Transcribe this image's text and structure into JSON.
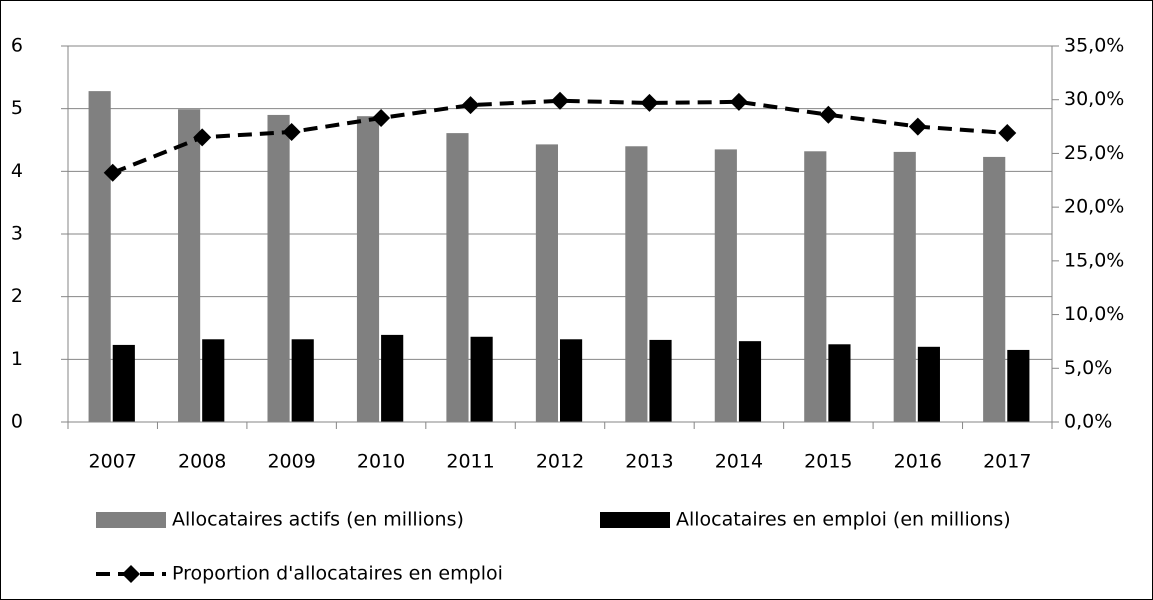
{
  "chart_data": {
    "type": "bar-line",
    "categories": [
      "2007",
      "2008",
      "2009",
      "2010",
      "2011",
      "2012",
      "2013",
      "2014",
      "2015",
      "2016",
      "2017"
    ],
    "series": [
      {
        "name": "Allocataires actifs (en millions)",
        "color": "#808080",
        "type": "bar",
        "values": [
          5.28,
          4.99,
          4.9,
          4.88,
          4.61,
          4.43,
          4.4,
          4.35,
          4.32,
          4.31,
          4.23
        ]
      },
      {
        "name": "Allocataires en emploi (en millions)",
        "color": "#000000",
        "type": "bar",
        "values": [
          1.23,
          1.32,
          1.32,
          1.39,
          1.36,
          1.32,
          1.31,
          1.29,
          1.24,
          1.2,
          1.15
        ]
      },
      {
        "name": "Proportion d'allocataires en emploi",
        "color": "#000000",
        "type": "line",
        "axis": "y2",
        "values": [
          23.2,
          26.5,
          27.0,
          28.3,
          29.5,
          29.9,
          29.7,
          29.8,
          28.6,
          27.5,
          26.9
        ]
      }
    ],
    "ylim": [
      0,
      6
    ],
    "yticks": [
      0,
      1,
      2,
      3,
      4,
      5,
      6
    ],
    "y2lim": [
      0,
      35
    ],
    "y2ticks": [
      {
        "value": 0,
        "label": "0,0%"
      },
      {
        "value": 5,
        "label": "5,0%"
      },
      {
        "value": 10,
        "label": "10,0%"
      },
      {
        "value": 15,
        "label": "15,0%"
      },
      {
        "value": 20,
        "label": "20,0%"
      },
      {
        "value": 25,
        "label": "25,0%"
      },
      {
        "value": 30,
        "label": "30,0%"
      },
      {
        "value": 35,
        "label": "35,0%"
      }
    ],
    "grid": true,
    "legend": "bottom"
  }
}
